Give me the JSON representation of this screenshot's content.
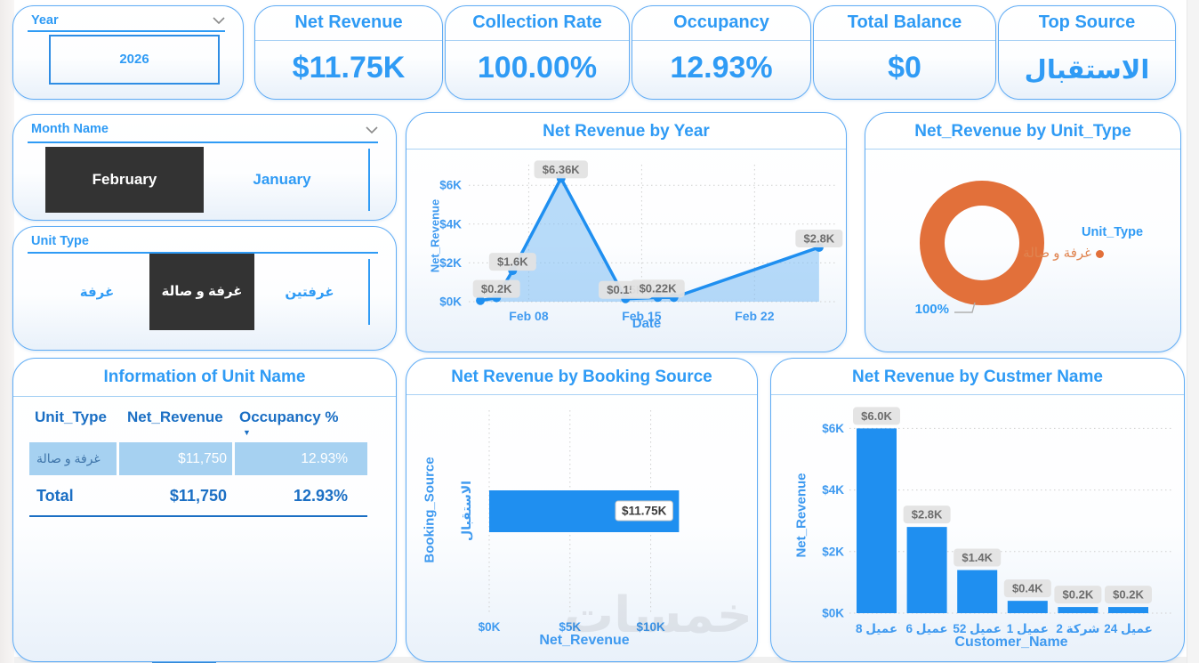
{
  "page": {
    "watermark": "خمسات"
  },
  "slicers": {
    "year": {
      "label": "Year",
      "value": "2026"
    },
    "month": {
      "label": "Month Name",
      "options": [
        {
          "label": "February",
          "selected": true
        },
        {
          "label": "January",
          "selected": false
        }
      ]
    },
    "unit_type": {
      "label": "Unit Type",
      "options": [
        {
          "label": "غرفة",
          "selected": false
        },
        {
          "label": "غرفة و صالة",
          "selected": true
        },
        {
          "label": "غرفتين",
          "selected": false
        }
      ]
    }
  },
  "kpis": [
    {
      "title": "Net Revenue",
      "value": "$11.75K"
    },
    {
      "title": "Collection Rate",
      "value": "100.00%"
    },
    {
      "title": "Occupancy",
      "value": "12.93%"
    },
    {
      "title": "Total Balance",
      "value": "$0"
    },
    {
      "title": "Top Source",
      "value": "الاستقبال"
    }
  ],
  "table": {
    "title": "Information of Unit Name",
    "columns": [
      "Unit_Type",
      "Net_Revenue",
      "Occupancy %"
    ],
    "rows": [
      [
        "غرفة و صالة",
        "$11,750",
        "12.93%"
      ]
    ],
    "total": [
      "Total",
      "$11,750",
      "12.93%"
    ],
    "sorted_column": "Occupancy %"
  },
  "colors": {
    "accent_blue": "#2f9bf5",
    "bar_blue": "#1f8ff0",
    "header_blue": "#1b6fc4",
    "selected_dark": "#333333",
    "donut_orange": "#e2703a",
    "table_row_highlight": "#a6d1f1"
  },
  "chart_data": [
    {
      "id": "net_revenue_by_year",
      "type": "area",
      "title": "Net Revenue by Year",
      "xlabel": "Date",
      "ylabel": "Net_Revenue",
      "ylim": [
        0,
        7
      ],
      "xlim": [
        4.5,
        27
      ],
      "grid": true,
      "yticks": [
        {
          "v": 0,
          "t": "$0K"
        },
        {
          "v": 2,
          "t": "$2K"
        },
        {
          "v": 4,
          "t": "$4K"
        },
        {
          "v": 6,
          "t": "$6K"
        }
      ],
      "xticks": [
        {
          "v": 8,
          "t": "Feb 08"
        },
        {
          "v": 15,
          "t": "Feb 15"
        },
        {
          "v": 22,
          "t": "Feb 22"
        }
      ],
      "points": [
        {
          "x": 5,
          "y": 0.06,
          "label": ""
        },
        {
          "x": 6,
          "y": 0.2,
          "label": "$0.2K"
        },
        {
          "x": 7,
          "y": 1.6,
          "label": "$1.6K"
        },
        {
          "x": 10,
          "y": 6.36,
          "label": "$6.36K"
        },
        {
          "x": 14,
          "y": 0.15,
          "label": "$0.15K"
        },
        {
          "x": 16,
          "y": 0.22,
          "label": "$0.22K"
        },
        {
          "x": 17,
          "y": 0.22,
          "label": ""
        },
        {
          "x": 26,
          "y": 2.8,
          "label": "$2.8K"
        }
      ],
      "line_color": "#1f8ff0",
      "fill_color": "rgba(125,190,244,0.55)"
    },
    {
      "id": "net_revenue_by_unit_type",
      "type": "pie",
      "title": "Net_Revenue by Unit_Type",
      "legend_title": "Unit_Type",
      "legend_position": "right",
      "slices": [
        {
          "label": "غرفة و صالة",
          "pct": 100,
          "data_label": "100%",
          "color": "#e2703a"
        }
      ]
    },
    {
      "id": "net_revenue_by_booking_source",
      "type": "bar",
      "orientation": "horizontal",
      "title": "Net Revenue by Booking Source",
      "xlabel": "Net_Revenue",
      "ylabel": "Booking_Source",
      "xlim": [
        0,
        13.5
      ],
      "grid": true,
      "xticks": [
        {
          "v": 0,
          "t": "$0K"
        },
        {
          "v": 5,
          "t": "$5K"
        },
        {
          "v": 10,
          "t": "$10K"
        }
      ],
      "bars": [
        {
          "label": "الاستقبال",
          "value": 11.75,
          "data_label": "$11.75K"
        }
      ],
      "bar_color": "#1f8ff0"
    },
    {
      "id": "net_revenue_by_custmer_name",
      "type": "bar",
      "orientation": "vertical",
      "title": "Net Revenue by Custmer Name",
      "xlabel": "Customer_Name",
      "ylabel": "Net_Revenue",
      "ylim": [
        0,
        6.6
      ],
      "grid": true,
      "yticks": [
        {
          "v": 0,
          "t": "$0K"
        },
        {
          "v": 2,
          "t": "$2K"
        },
        {
          "v": 4,
          "t": "$4K"
        },
        {
          "v": 6,
          "t": "$6K"
        }
      ],
      "bars": [
        {
          "label": "عميل 8",
          "value": 6.0,
          "data_label": "$6.0K"
        },
        {
          "label": "عميل 6",
          "value": 2.8,
          "data_label": "$2.8K"
        },
        {
          "label": "عميل 52",
          "value": 1.4,
          "data_label": "$1.4K"
        },
        {
          "label": "عميل 1",
          "value": 0.4,
          "data_label": "$0.4K"
        },
        {
          "label": "شركة 2",
          "value": 0.2,
          "data_label": "$0.2K"
        },
        {
          "label": "عميل 24",
          "value": 0.2,
          "data_label": "$0.2K"
        }
      ],
      "bar_color": "#1f8ff0"
    }
  ]
}
